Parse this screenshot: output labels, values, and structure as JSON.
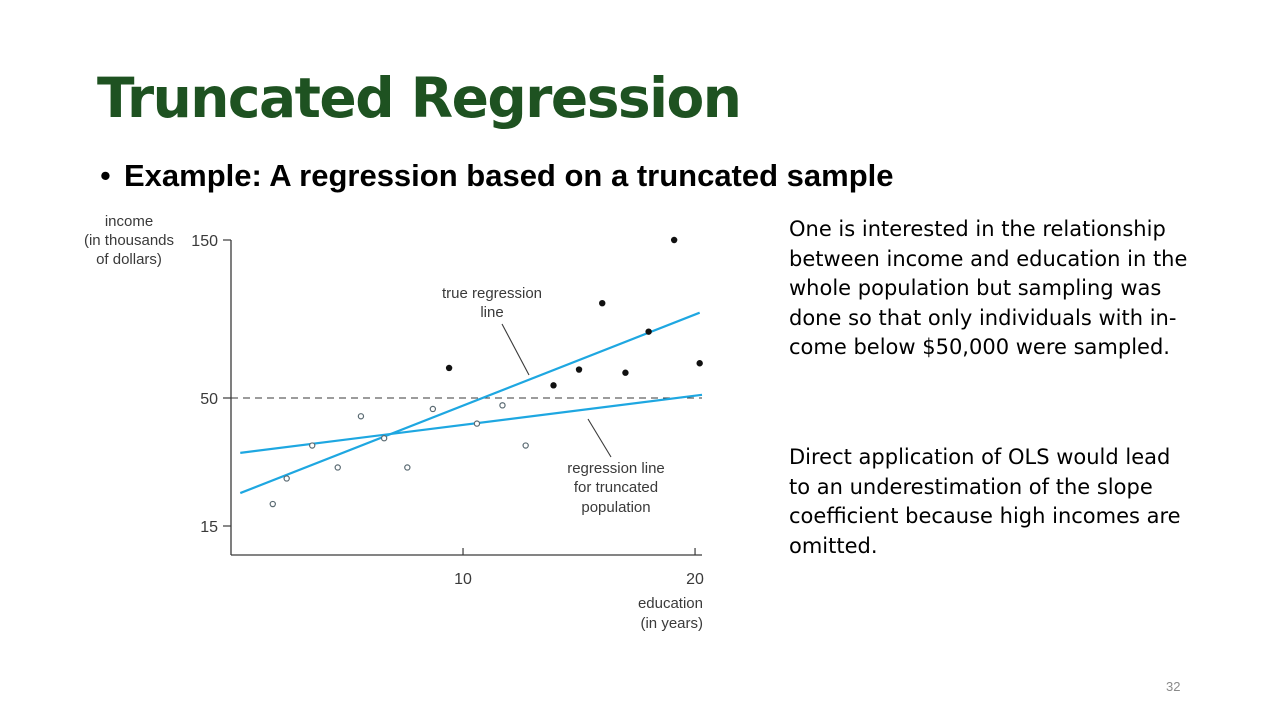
{
  "slide": {
    "title": "Truncated Regression",
    "bullet": "Example: A regression based on a truncated sample",
    "paragraph1": "One is interested in the relationship between income and education in the whole population but sampling was done so that only individuals with in-come below $50,000 were sampled.",
    "paragraph2": "Direct application of OLS would lead to an underestimation of the slope coefficient because high incomes are omitted.",
    "page_number": "32"
  },
  "chart_data": {
    "type": "scatter",
    "xlabel": [
      "education",
      "(in years)"
    ],
    "ylabel": [
      "income",
      "(in thousands",
      "of dollars)"
    ],
    "x_ticks": [
      10,
      20
    ],
    "y_ticks": [
      15,
      50,
      150
    ],
    "xlim": [
      0,
      20.3
    ],
    "series": [
      {
        "marker": "open",
        "x": [
          1.8,
          2.4,
          3.5,
          4.6,
          5.6,
          6.6,
          7.6,
          8.7,
          10.6,
          11.7,
          12.7
        ],
        "y": [
          21,
          28,
          37,
          31,
          45,
          39,
          31,
          47,
          43,
          48,
          37
        ]
      },
      {
        "marker": "filled",
        "x": [
          9.4,
          13.9,
          15.0,
          16.0,
          17.0,
          18.0,
          19.1,
          20.2
        ],
        "y": [
          69,
          58,
          68,
          110,
          66,
          92,
          150,
          72
        ]
      }
    ],
    "lines": [
      {
        "label": [
          "true regression",
          "line"
        ],
        "x": [
          0.4,
          20.2
        ],
        "y": [
          24,
          104
        ],
        "color": "#1ea7e1"
      },
      {
        "label": [
          "regression line",
          "for truncated",
          "population"
        ],
        "x": [
          0.4,
          20.3
        ],
        "y": [
          35,
          52
        ],
        "color": "#1ea7e1"
      }
    ],
    "reference_line": {
      "y": 50,
      "style": "dashed"
    }
  }
}
